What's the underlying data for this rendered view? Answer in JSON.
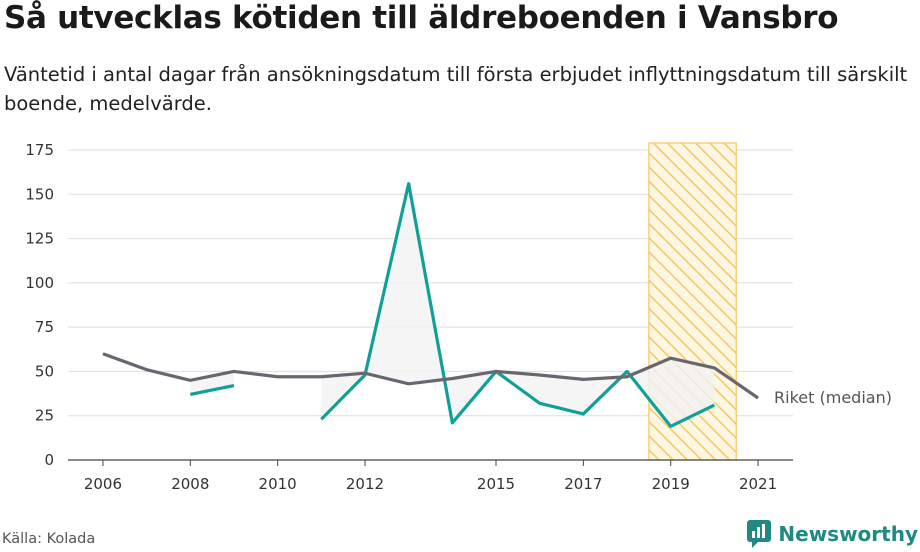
{
  "title": "Så utvecklas kötiden till äldreboenden i Vansbro",
  "subtitle": "Väntetid i antal dagar från ansökningsdatum till första erbjudet inflyttningsdatum till särskilt boende, medelvärde.",
  "source": "Källa: Kolada",
  "brand": "Newsworthy",
  "chart_data": {
    "type": "line",
    "x_ticks": [
      "2006",
      "2008",
      "2010",
      "2012",
      "2015",
      "2017",
      "2019",
      "2021"
    ],
    "y_ticks": [
      "0",
      "25",
      "50",
      "75",
      "100",
      "125",
      "150",
      "175"
    ],
    "ylim": [
      0,
      175
    ],
    "xlim": [
      2005.2,
      2021.8
    ],
    "grid": true,
    "highlight_period": [
      2018.5,
      2020.5
    ],
    "series": [
      {
        "color": "#0fa198",
        "x": [
          2006,
          2007,
          2008,
          2009,
          2010,
          2011,
          2012,
          2013,
          2014,
          2015,
          2016,
          2017,
          2018,
          2019,
          2020
        ],
        "values": [
          null,
          null,
          37,
          42,
          null,
          23,
          48,
          156,
          21,
          50,
          32,
          26,
          50,
          19,
          31
        ]
      },
      {
        "name": "Riket (median)",
        "color": "#6a6670",
        "x": [
          2006,
          2007,
          2008,
          2009,
          2010,
          2011,
          2012,
          2013,
          2014,
          2015,
          2016,
          2017,
          2018,
          2019,
          2020,
          2021
        ],
        "values": [
          60,
          51,
          45,
          50,
          47,
          47,
          49,
          43,
          46,
          50,
          48,
          45.5,
          47,
          57.5,
          52,
          35
        ]
      }
    ]
  },
  "colors": {
    "hatch": "#f5c860",
    "hatch_bg": "#fdf6e3",
    "band": "#f2f2f2"
  }
}
